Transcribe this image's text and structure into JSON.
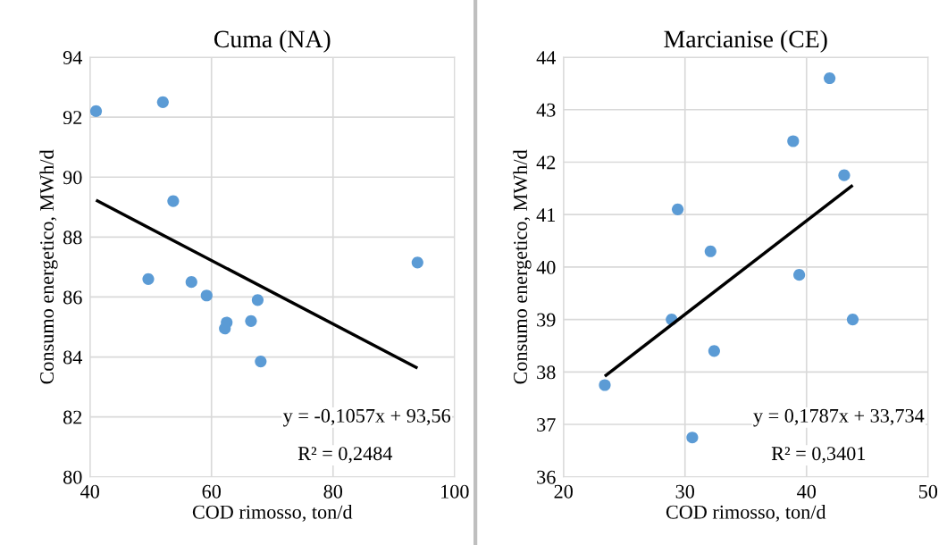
{
  "chart_data": [
    {
      "type": "scatter",
      "title": "Cuma (NA)",
      "xlabel": "COD rimosso, ton/d",
      "ylabel": "Consumo energetico, MWh/d",
      "xlim": [
        40,
        100
      ],
      "xticks": [
        40,
        60,
        80,
        100
      ],
      "ylim": [
        80,
        94
      ],
      "yticks": [
        80,
        82,
        84,
        86,
        88,
        90,
        92,
        94
      ],
      "grid": true,
      "legend": false,
      "series": [
        {
          "marker": "circle",
          "color": "#5b9bd5",
          "x": [
            41.0,
            52.0,
            53.7,
            49.6,
            56.7,
            59.2,
            67.6,
            62.5,
            62.2,
            66.5,
            68.1,
            93.9
          ],
          "values": [
            92.2,
            92.5,
            89.2,
            86.6,
            86.5,
            86.05,
            85.9,
            85.15,
            84.95,
            85.2,
            83.85,
            87.15
          ]
        },
        {
          "type": "line",
          "marker": "none",
          "color": "#000000",
          "x": [
            41.0,
            93.9
          ],
          "values": [
            89.23,
            83.63
          ]
        }
      ],
      "annotations": [
        "y = -0,1057x + 93,56",
        "R² = 0,2484"
      ]
    },
    {
      "type": "scatter",
      "title": "Marcianise (CE)",
      "xlabel": "COD rimosso, ton/d",
      "ylabel": "Consumo energetico, MWh/d",
      "xlim": [
        20,
        50
      ],
      "xticks": [
        20,
        30,
        40,
        50
      ],
      "ylim": [
        36,
        44
      ],
      "yticks": [
        36,
        37,
        38,
        39,
        40,
        41,
        42,
        43,
        44
      ],
      "grid": true,
      "legend": false,
      "series": [
        {
          "marker": "circle",
          "color": "#5b9bd5",
          "x": [
            41.9,
            38.9,
            43.1,
            29.4,
            32.1,
            39.4,
            28.9,
            43.8,
            32.4,
            23.4,
            30.6
          ],
          "values": [
            43.6,
            42.4,
            41.75,
            41.1,
            40.3,
            39.85,
            39.0,
            39.0,
            38.4,
            37.75,
            36.75
          ]
        },
        {
          "type": "line",
          "marker": "none",
          "color": "#000000",
          "x": [
            23.4,
            43.8
          ],
          "values": [
            37.92,
            41.56
          ]
        }
      ],
      "annotations": [
        "y = 0,1787x + 33,734",
        "R² = 0,3401"
      ]
    }
  ]
}
